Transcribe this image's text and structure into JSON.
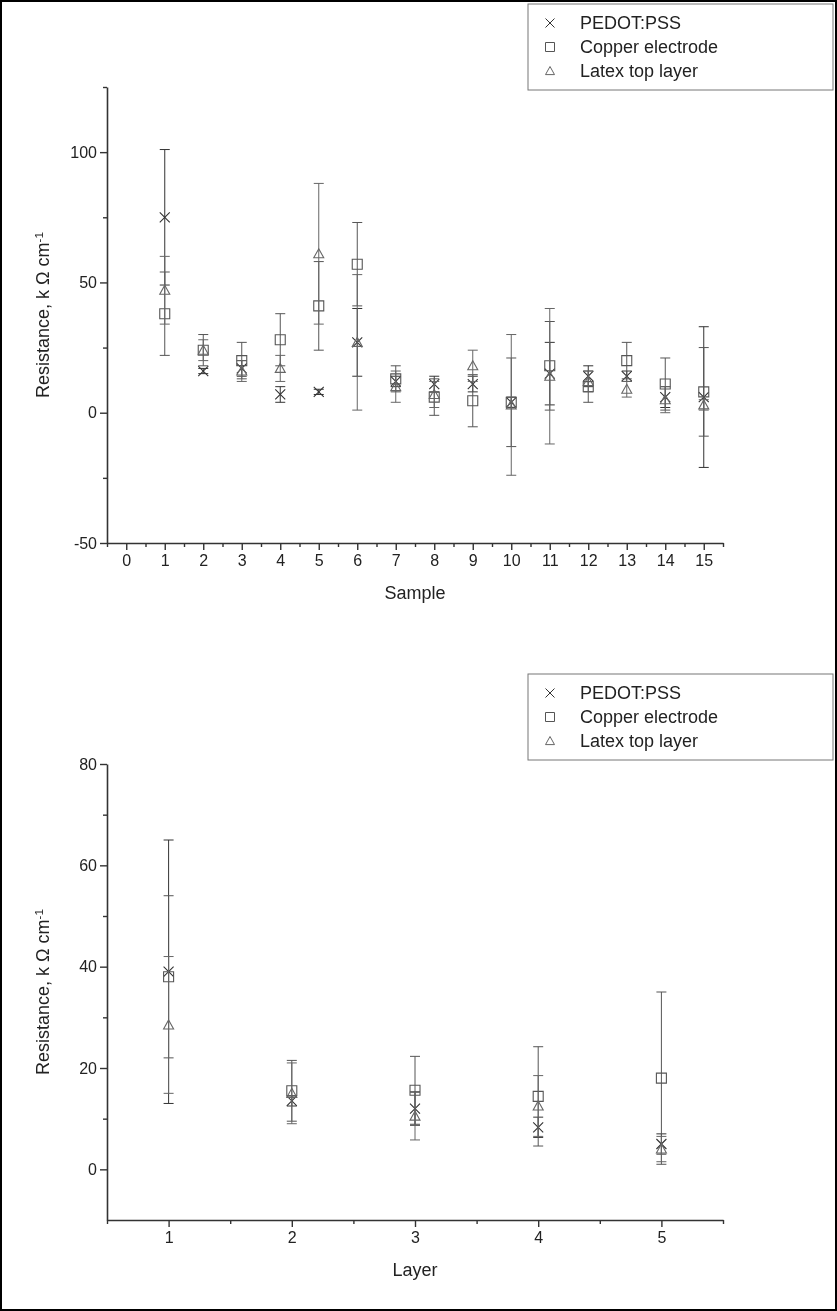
{
  "chart_data": [
    {
      "type": "scatter",
      "xlabel": "Sample",
      "ylabel": "Resistance, k Ω cm$^{-1}$",
      "legend": "top right",
      "x": [
        1,
        2,
        3,
        4,
        5,
        6,
        7,
        8,
        9,
        10,
        11,
        12,
        13,
        14,
        15
      ],
      "xlim": [
        -0.5,
        15.5
      ],
      "xticks": [
        0,
        1,
        2,
        3,
        4,
        5,
        6,
        7,
        8,
        9,
        10,
        11,
        12,
        13,
        14,
        15,
        {
          "value": -0.5,
          "label": null
        },
        {
          "value": 0.5,
          "label": null
        },
        {
          "value": 1.5,
          "label": null
        },
        {
          "value": 2.5,
          "label": null
        },
        {
          "value": 3.5,
          "label": null
        },
        {
          "value": 4.5,
          "label": null
        },
        {
          "value": 5.5,
          "label": null
        },
        {
          "value": 6.5,
          "label": null
        },
        {
          "value": 7.5,
          "label": null
        },
        {
          "value": 8.5,
          "label": null
        },
        {
          "value": 9.5,
          "label": null
        },
        {
          "value": 10.5,
          "label": null
        },
        {
          "value": 11.5,
          "label": null
        },
        {
          "value": 12.5,
          "label": null
        },
        {
          "value": 13.5,
          "label": null
        },
        {
          "value": 14.5,
          "label": null
        },
        {
          "value": 15.5,
          "label": null
        }
      ],
      "ylim": [
        -50,
        125
      ],
      "yticks": [
        -50,
        0,
        50,
        100,
        {
          "value": -25,
          "label": null
        },
        {
          "value": 25,
          "label": null
        },
        {
          "value": 75,
          "label": null
        },
        {
          "value": 125,
          "label": null
        }
      ],
      "series": [
        {
          "name": "PEDOT:PSS",
          "color": "#333333",
          "marker": "cross",
          "values": [
            75,
            16,
            17,
            7,
            8,
            27,
            12,
            11,
            11,
            4,
            15,
            14,
            14,
            6,
            6
          ],
          "errors": [
            26,
            1,
            3,
            3,
            1,
            13,
            2,
            3,
            3,
            2,
            12,
            4,
            2,
            4,
            27
          ]
        },
        {
          "name": "Copper electrode",
          "color": "#555555",
          "marker": "square",
          "values": [
            38,
            24,
            20,
            28,
            41,
            57,
            13,
            6,
            4.6,
            4,
            18,
            10,
            20,
            11,
            8
          ],
          "errors": [
            16,
            6,
            7,
            10,
            17,
            16,
            5,
            7,
            10,
            17,
            17,
            6,
            7,
            10,
            17
          ]
        },
        {
          "name": "Latex top layer",
          "color": "#666666",
          "marker": "triangle",
          "values": [
            47,
            24,
            16,
            17,
            61,
            27,
            10,
            7,
            18,
            3,
            14,
            12,
            9,
            5,
            3
          ],
          "errors": [
            13,
            4,
            4,
            5,
            27,
            26,
            6,
            5,
            6,
            27,
            26,
            4,
            3,
            5,
            2
          ]
        }
      ]
    },
    {
      "type": "scatter",
      "xlabel": "Layer",
      "ylabel": "Resistance, k Ω cm$^{-1}$",
      "legend": "top right",
      "x": [
        1,
        2,
        3,
        4,
        5
      ],
      "xlim": [
        0.5,
        5.5
      ],
      "xticks": [
        1,
        2,
        3,
        4,
        5,
        {
          "value": 0.5,
          "label": null
        },
        {
          "value": 1.5,
          "label": null
        },
        {
          "value": 2.5,
          "label": null
        },
        {
          "value": 3.5,
          "label": null
        },
        {
          "value": 4.5,
          "label": null
        },
        {
          "value": 5.5,
          "label": null
        }
      ],
      "ylim": [
        -10,
        80
      ],
      "yticks": [
        0,
        20,
        40,
        60,
        80,
        {
          "value": 10,
          "label": null
        },
        {
          "value": 30,
          "label": null
        },
        {
          "value": 50,
          "label": null
        },
        {
          "value": 70,
          "label": null
        }
      ],
      "series": [
        {
          "name": "PEDOT:PSS",
          "color": "#333333",
          "marker": "cross",
          "values": [
            39,
            13.5,
            12,
            8.3,
            5
          ],
          "errors": [
            26,
            1,
            3.3,
            2,
            2
          ]
        },
        {
          "name": "Copper electrode",
          "color": "#555555",
          "marker": "square",
          "values": [
            38,
            15.5,
            15.6,
            14.4,
            18
          ],
          "errors": [
            16,
            6,
            6.7,
            9.8,
            17
          ]
        },
        {
          "name": "Latex top layer",
          "color": "#666666",
          "marker": "triangle",
          "values": [
            28.5,
            15,
            10.5,
            12.5,
            4
          ],
          "errors": [
            13.5,
            6,
            4.7,
            6,
            2.5
          ]
        }
      ]
    }
  ]
}
